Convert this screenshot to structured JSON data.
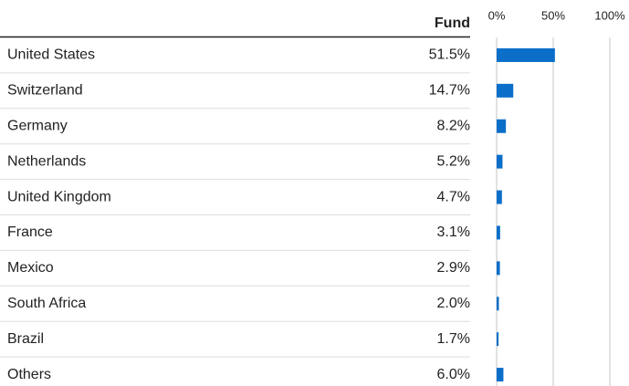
{
  "chart_data": {
    "type": "bar",
    "categories": [
      "United States",
      "Switzerland",
      "Germany",
      "Netherlands",
      "United Kingdom",
      "France",
      "Mexico",
      "South Africa",
      "Brazil",
      "Others"
    ],
    "series": [
      {
        "name": "Fund",
        "color": "#0b6fca",
        "values": [
          51.5,
          14.7,
          8.2,
          5.2,
          4.7,
          3.1,
          2.9,
          2.0,
          1.7,
          6.0
        ],
        "value_labels": [
          "51.5%",
          "14.7%",
          "8.2%",
          "5.2%",
          "4.7%",
          "3.1%",
          "2.9%",
          "2.0%",
          "1.7%",
          "6.0%"
        ]
      }
    ],
    "xlim": [
      0,
      100
    ],
    "xticks": [
      {
        "value": 0,
        "label": "0%"
      },
      {
        "value": 50,
        "label": "50%"
      },
      {
        "value": 100,
        "label": "100%"
      }
    ],
    "grid": true
  }
}
